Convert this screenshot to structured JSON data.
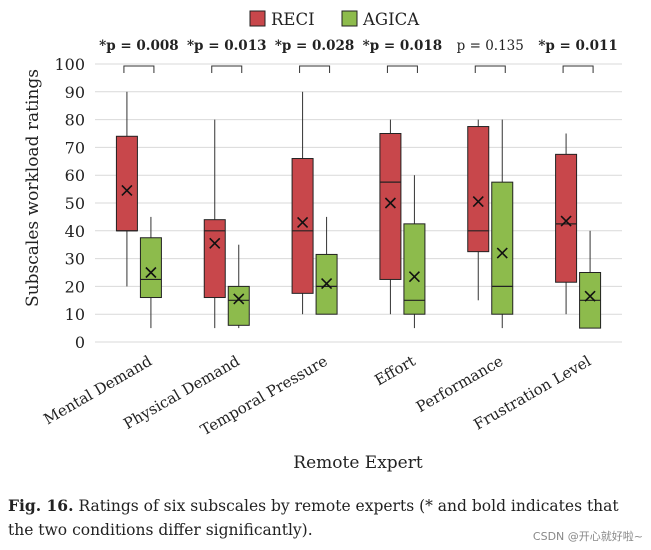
{
  "chart_data": {
    "type": "boxplot",
    "title": "",
    "xlabel": "Remote Expert",
    "ylabel": "Subscales workload ratings",
    "ylim": [
      0,
      100
    ],
    "yticks": [
      0,
      10,
      20,
      30,
      40,
      50,
      60,
      70,
      80,
      90,
      100
    ],
    "categories": [
      "Mental Demand",
      "Physical Demand",
      "Temporal Pressure",
      "Effort",
      "Performance",
      "Frustration Level"
    ],
    "significance": [
      {
        "label": "*p = 0.008",
        "significant": true
      },
      {
        "label": "*p = 0.013",
        "significant": true
      },
      {
        "label": "*p = 0.028",
        "significant": true
      },
      {
        "label": "*p = 0.018",
        "significant": true
      },
      {
        "label": "p = 0.135",
        "significant": false
      },
      {
        "label": "*p = 0.011",
        "significant": true
      }
    ],
    "series": [
      {
        "name": "RECI",
        "color": "#c8474b",
        "boxes": [
          {
            "min": 20,
            "q1": 40,
            "median": 40,
            "q3": 74,
            "max": 90,
            "mean": 54.5
          },
          {
            "min": 5,
            "q1": 16,
            "median": 40,
            "q3": 44,
            "max": 80,
            "mean": 35.5
          },
          {
            "min": 10,
            "q1": 17.5,
            "median": 40,
            "q3": 66,
            "max": 90,
            "mean": 43
          },
          {
            "min": 10,
            "q1": 22.5,
            "median": 57.5,
            "q3": 75,
            "max": 80,
            "mean": 50
          },
          {
            "min": 15,
            "q1": 32.5,
            "median": 40,
            "q3": 77.5,
            "max": 80,
            "mean": 50.5
          },
          {
            "min": 10,
            "q1": 21.5,
            "median": 42.5,
            "q3": 67.5,
            "max": 75,
            "mean": 43.5
          }
        ]
      },
      {
        "name": "AGICA",
        "color": "#8dbb4c",
        "boxes": [
          {
            "min": 5,
            "q1": 16,
            "median": 22.5,
            "q3": 37.5,
            "max": 45,
            "mean": 25
          },
          {
            "min": 5,
            "q1": 6,
            "median": 15,
            "q3": 20,
            "max": 35,
            "mean": 15.5
          },
          {
            "min": 10,
            "q1": 10,
            "median": 20,
            "q3": 31.5,
            "max": 45,
            "mean": 21
          },
          {
            "min": 5,
            "q1": 10,
            "median": 15,
            "q3": 42.5,
            "max": 60,
            "mean": 23.5
          },
          {
            "min": 5,
            "q1": 10,
            "median": 20,
            "q3": 57.5,
            "max": 80,
            "mean": 32
          },
          {
            "min": 5,
            "q1": 5,
            "median": 15,
            "q3": 25,
            "max": 40,
            "mean": 16.5
          }
        ]
      }
    ],
    "legend_position": "top-center"
  },
  "caption": {
    "label": "Fig. 16.",
    "text": "Ratings of six subscales by remote experts (* and bold indicates that the two conditions differ significantly)."
  },
  "watermark": "CSDN @开心就好啦~"
}
